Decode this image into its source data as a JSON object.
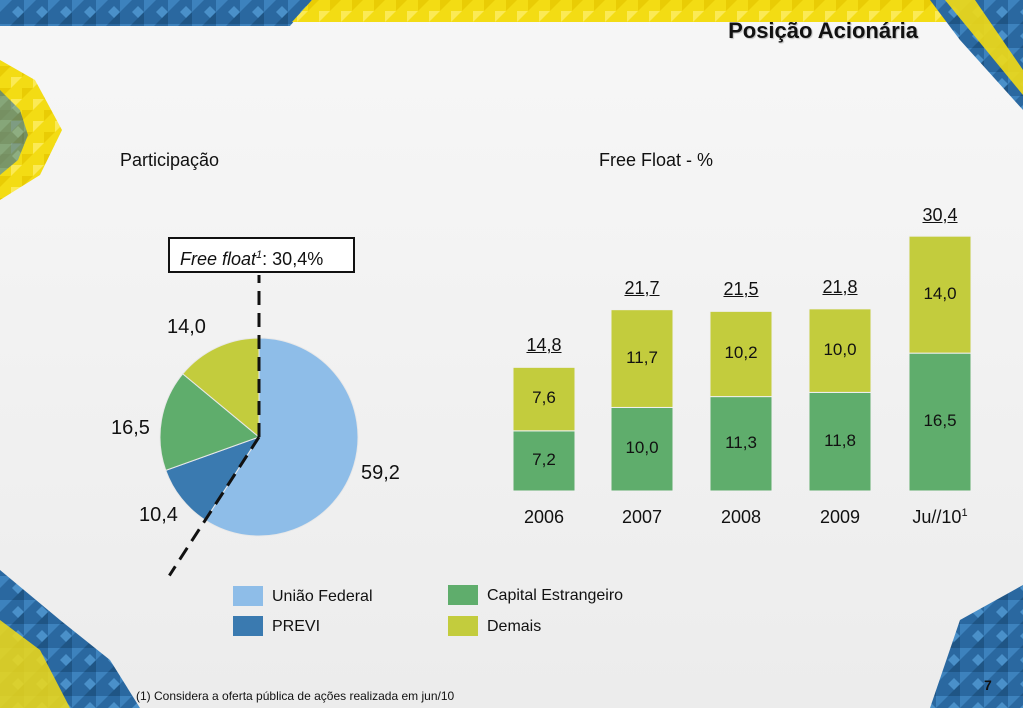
{
  "slide": {
    "title": "Posição Acionária",
    "page_number": "7",
    "footnote": "(1) Considera a oferta pública de ações realizada em jun/10"
  },
  "colors": {
    "uniao_federal": "#8ebde8",
    "previ": "#3a7ab0",
    "capital_estrangeiro": "#5fad6c",
    "demais": "#c3cc3d",
    "banner_yellow": "#f5e20a",
    "pattern_blue": "#2a68a0"
  },
  "chart_data": [
    {
      "type": "pie",
      "title": "Participação",
      "annotation": {
        "label_italic": "Free float",
        "label_sup": "1",
        "label_rest": ": 30,4%"
      },
      "slices": [
        {
          "name": "União Federal",
          "value": 59.2,
          "label": "59,2"
        },
        {
          "name": "PREVI",
          "value": 10.4,
          "label": "10,4"
        },
        {
          "name": "Capital Estrangeiro",
          "value": 16.5,
          "label": "16,5"
        },
        {
          "name": "Demais",
          "value": 14.0,
          "label": "14,0"
        }
      ]
    },
    {
      "type": "bar",
      "stacked": true,
      "title": "Free Float - %",
      "categories": [
        "2006",
        "2007",
        "2008",
        "2009",
        "Ju//10"
      ],
      "category_footnote": {
        "index": 4,
        "mark": "1"
      },
      "series": [
        {
          "name": "Capital Estrangeiro",
          "values": [
            7.2,
            10.0,
            11.3,
            11.8,
            16.5
          ],
          "labels": [
            "7,2",
            "10,0",
            "11,3",
            "11,8",
            "16,5"
          ]
        },
        {
          "name": "Demais",
          "values": [
            7.6,
            11.7,
            10.2,
            10.0,
            14.0
          ],
          "labels": [
            "7,6",
            "11,7",
            "10,2",
            "10,0",
            "14,0"
          ]
        }
      ],
      "totals": [
        14.8,
        21.7,
        21.5,
        21.8,
        30.4
      ],
      "total_labels": [
        "14,8",
        "21,7",
        "21,5",
        "21,8",
        "30,4"
      ],
      "ylim": [
        0,
        30.4
      ]
    }
  ],
  "legend": [
    {
      "name": "União Federal",
      "color_key": "uniao_federal"
    },
    {
      "name": "Capital Estrangeiro",
      "color_key": "capital_estrangeiro"
    },
    {
      "name": "PREVI",
      "color_key": "previ"
    },
    {
      "name": "Demais",
      "color_key": "demais"
    }
  ]
}
